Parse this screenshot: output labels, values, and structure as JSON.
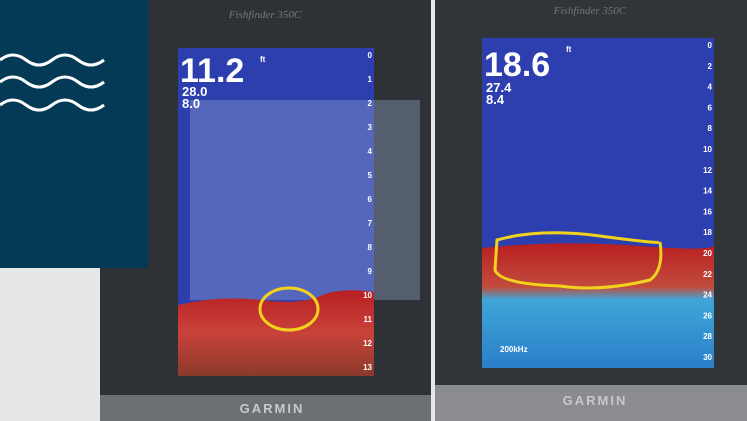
{
  "left_unit": {
    "model": "Fishfinder 350C",
    "depth": "11.2",
    "depth_unit": "ft",
    "temperature": "28.0",
    "speed": "8.0",
    "brand": "GARMIN",
    "scale": [
      "0",
      "1",
      "2",
      "3",
      "4",
      "5",
      "6",
      "7",
      "8",
      "9",
      "10",
      "11",
      "12",
      "13"
    ]
  },
  "right_unit": {
    "model": "Fishfinder 350C",
    "depth": "18.6",
    "depth_unit": "ft",
    "temperature": "27.4",
    "speed": "8.4",
    "frequency": "200kHz",
    "brand": "GARMIN",
    "scale": [
      "0",
      "2",
      "4",
      "6",
      "8",
      "10",
      "12",
      "14",
      "16",
      "18",
      "20",
      "22",
      "24",
      "26",
      "28",
      "30"
    ]
  }
}
